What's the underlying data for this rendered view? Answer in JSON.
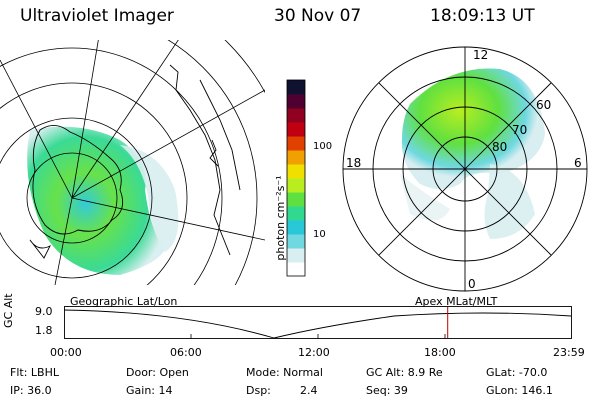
{
  "header": {
    "title": "Ultraviolet Imager",
    "date": "30 Nov 07",
    "time": "18:09:13 UT"
  },
  "colorbar": {
    "ticks": [
      "100",
      "10"
    ],
    "unit": "photon cm⁻²s⁻¹",
    "scale": "log",
    "colors": [
      "#ffffff",
      "#d8eef0",
      "#6fd8e0",
      "#28c8d8",
      "#30d890",
      "#60e040",
      "#b8ee20",
      "#f0e000",
      "#f0a000",
      "#e04000",
      "#c00010",
      "#900020",
      "#500030",
      "#101030"
    ]
  },
  "polar_plot": {
    "mlt_labels": [
      "12",
      "18",
      "6",
      "0"
    ],
    "lat_labels": [
      "60",
      "70",
      "80"
    ]
  },
  "timeline": {
    "left_label": "Geographic Lat/Lon",
    "right_label": "Apex MLat/MLT",
    "y_axis_label": "GC Alt",
    "y_ticks": [
      "9.0",
      "1.8"
    ],
    "x_ticks": [
      "00:00",
      "06:00",
      "12:00",
      "18:00",
      "23:59"
    ],
    "marker_time": "18:09",
    "marker_color": "#c00000"
  },
  "status": {
    "row1": {
      "flt": "Flt: LBHL",
      "door": "Door: Open",
      "mode": "Mode: Normal",
      "gcalt": "GC Alt: 8.9 Re",
      "glat": "GLat: -70.0"
    },
    "row2": {
      "ip": "IP: 36.0",
      "gain": "Gain: 14",
      "dsp_label": "Dsp:",
      "dsp_value": "2.4",
      "seq": "Seq: 39",
      "glon": "GLon: 146.1"
    }
  }
}
